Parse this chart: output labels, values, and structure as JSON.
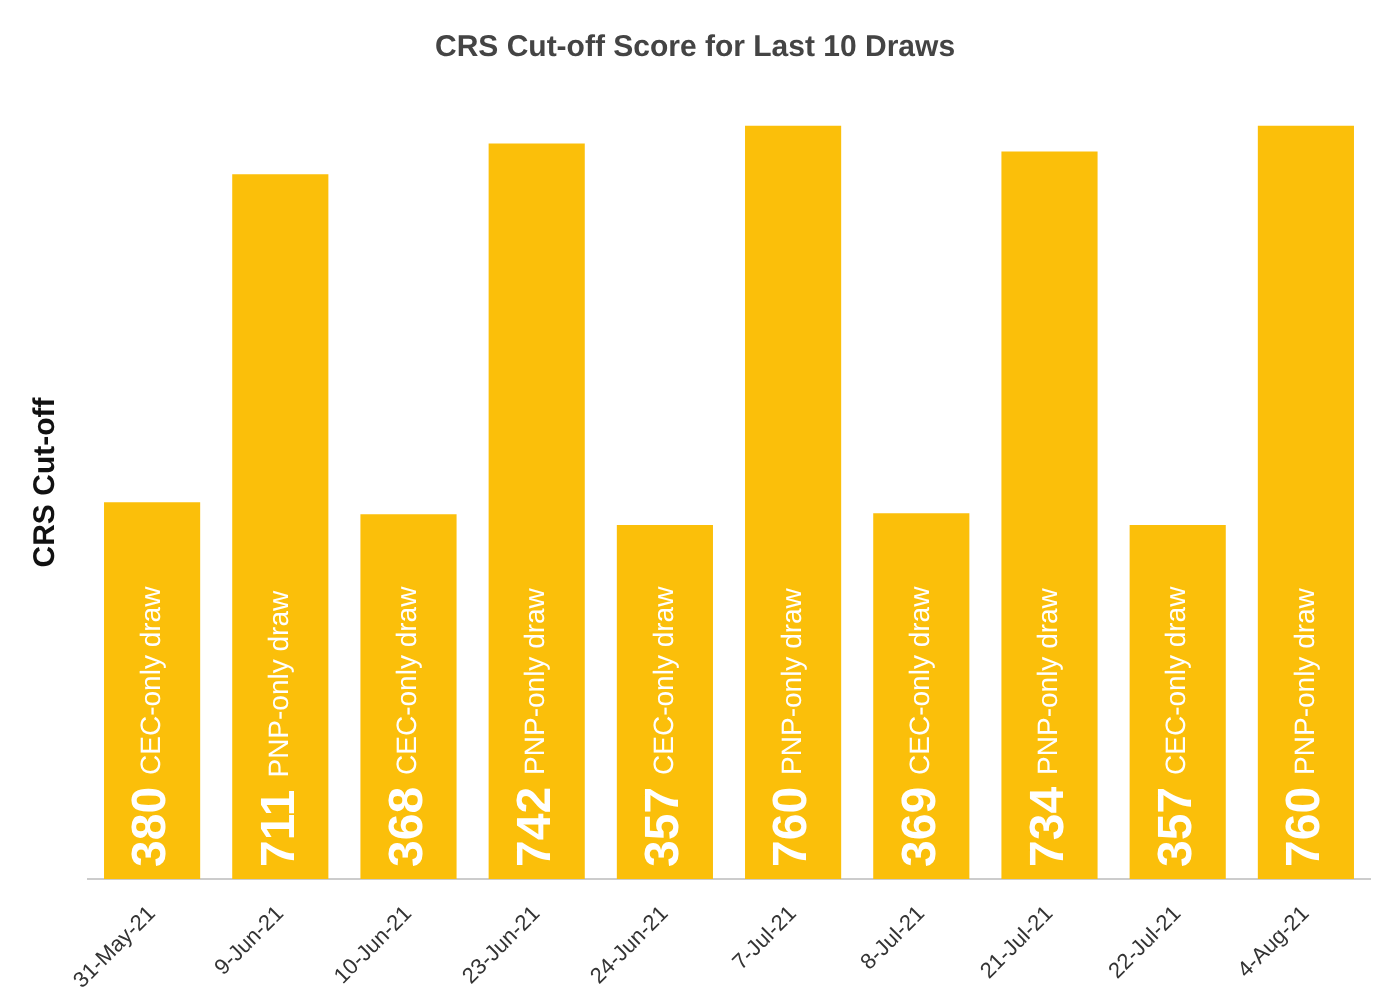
{
  "chart_data": {
    "type": "bar",
    "title": "CRS Cut-off Score for Last 10 Draws",
    "ylabel": "CRS Cut-off",
    "categories": [
      "31-May-21",
      "9-Jun-21",
      "10-Jun-21",
      "23-Jun-21",
      "24-Jun-21",
      "7-Jul-21",
      "8-Jul-21",
      "21-Jul-21",
      "22-Jul-21",
      "4-Aug-21"
    ],
    "values": [
      380,
      711,
      368,
      742,
      357,
      760,
      369,
      734,
      357,
      760
    ],
    "color": "#fbbf0a",
    "data_labels": true,
    "annotations": [
      "CEC-only draw",
      "PNP-only draw",
      "CEC-only draw",
      "PNP-only draw",
      "CEC-only draw",
      "PNP-only draw",
      "CEC-only draw",
      "PNP-only draw",
      "CEC-only draw",
      "PNP-only draw"
    ]
  }
}
